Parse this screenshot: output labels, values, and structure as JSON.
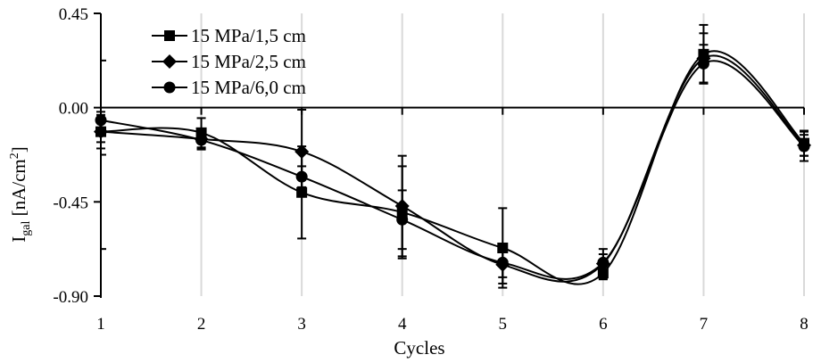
{
  "chart_data": {
    "type": "line",
    "title": "",
    "xlabel": "Cycles",
    "ylabel": "I",
    "ylabel_sub": "gal",
    "ylabel_unit_pre": " [nA/cm",
    "ylabel_unit_sup": "2",
    "ylabel_unit_post": "]",
    "x": [
      1,
      2,
      3,
      4,
      5,
      6,
      7,
      8
    ],
    "xlim": [
      1,
      8
    ],
    "ylim": [
      -0.9,
      0.45
    ],
    "xticks": [
      "1",
      "2",
      "3",
      "4",
      "5",
      "6",
      "7",
      "8"
    ],
    "yticks": [
      {
        "value": 0.45,
        "label": "0.45"
      },
      {
        "value": 0,
        "label": "0.00"
      },
      {
        "value": -0.45,
        "label": "-0.45"
      },
      {
        "value": -0.9,
        "label": "-0.90"
      }
    ],
    "grid": "vertical",
    "smoothed": true,
    "legend_position": "top-left",
    "color": "#000000",
    "grid_color": "#d9d9d9",
    "series": [
      {
        "name": "15 MPa/1,5 cm",
        "marker": "square",
        "values": [
          -0.115,
          -0.12,
          -0.405,
          -0.5,
          -0.67,
          -0.79,
          0.255,
          -0.17
        ],
        "errors": [
          0.08,
          0.07,
          0.22,
          0.22,
          0.19,
          0.03,
          0.14,
          0.06
        ]
      },
      {
        "name": "15 MPa/2,5 cm",
        "marker": "diamond",
        "values": [
          -0.115,
          -0.15,
          -0.21,
          -0.47,
          -0.75,
          -0.745,
          0.235,
          -0.18
        ],
        "errors": [
          0.05,
          0.05,
          0.2,
          0.24,
          0.09,
          0.07,
          0.12,
          0.05
        ]
      },
      {
        "name": "15 MPa/6,0 cm",
        "marker": "circle",
        "values": [
          -0.06,
          -0.155,
          -0.33,
          -0.535,
          -0.74,
          -0.74,
          0.21,
          -0.185
        ],
        "errors": [
          0.04,
          0.04,
          0.05,
          0.14,
          0.07,
          0.04,
          0.09,
          0.07
        ]
      }
    ]
  }
}
